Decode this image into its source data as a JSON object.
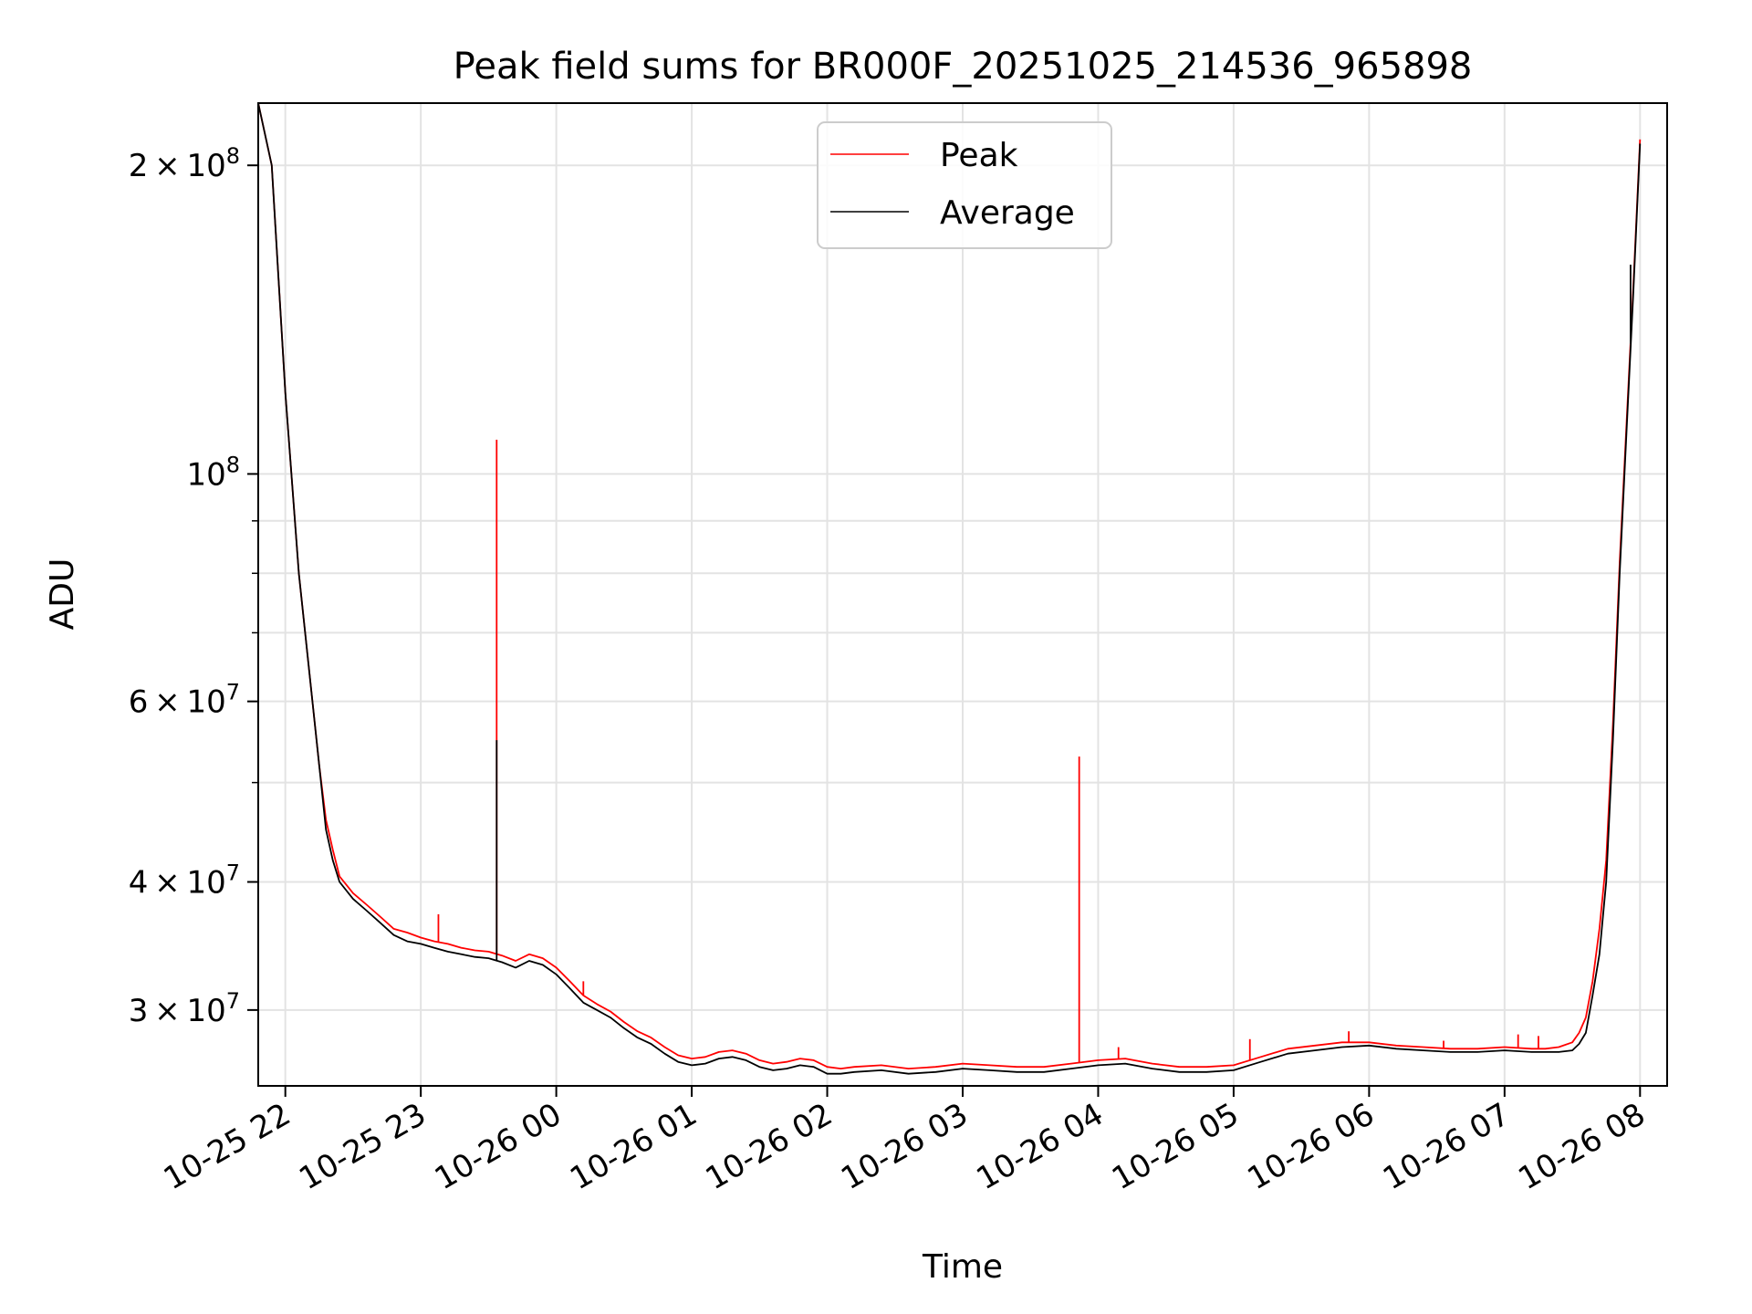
{
  "chart_data": {
    "type": "line",
    "title": "Peak field sums for BR000F_20251025_214536_965898",
    "xlabel": "Time",
    "ylabel": "ADU",
    "yscale": "log",
    "ylim": [
      25300000,
      230000000
    ],
    "xlim_hours": [
      -0.2,
      10.2
    ],
    "grid": true,
    "legend_position": "upper-center",
    "x_ticks": [
      {
        "hours": 0,
        "label": "10-25 22"
      },
      {
        "hours": 1,
        "label": "10-25 23"
      },
      {
        "hours": 2,
        "label": "10-26 00"
      },
      {
        "hours": 3,
        "label": "10-26 01"
      },
      {
        "hours": 4,
        "label": "10-26 02"
      },
      {
        "hours": 5,
        "label": "10-26 03"
      },
      {
        "hours": 6,
        "label": "10-26 04"
      },
      {
        "hours": 7,
        "label": "10-26 05"
      },
      {
        "hours": 8,
        "label": "10-26 06"
      },
      {
        "hours": 9,
        "label": "10-26 07"
      },
      {
        "hours": 10,
        "label": "10-26 08"
      }
    ],
    "y_ticks": [
      {
        "value": 30000000,
        "mantissa": "3",
        "exponent": "7"
      },
      {
        "value": 40000000,
        "mantissa": "4",
        "exponent": "7"
      },
      {
        "value": 60000000,
        "mantissa": "6",
        "exponent": "7"
      },
      {
        "value": 100000000,
        "mantissa": "",
        "exponent": "8"
      },
      {
        "value": 200000000,
        "mantissa": "2",
        "exponent": "8"
      }
    ],
    "y_minor_ticks": [
      50000000,
      70000000,
      80000000,
      90000000
    ],
    "x_hours": [
      -0.2,
      -0.1,
      0.0,
      0.1,
      0.2,
      0.25,
      0.3,
      0.35,
      0.4,
      0.5,
      0.6,
      0.7,
      0.8,
      0.9,
      1.0,
      1.1,
      1.2,
      1.3,
      1.4,
      1.5,
      1.6,
      1.7,
      1.8,
      1.9,
      2.0,
      2.1,
      2.2,
      2.3,
      2.4,
      2.5,
      2.6,
      2.7,
      2.8,
      2.9,
      3.0,
      3.1,
      3.2,
      3.3,
      3.4,
      3.5,
      3.6,
      3.7,
      3.8,
      3.9,
      4.0,
      4.1,
      4.2,
      4.4,
      4.6,
      4.8,
      5.0,
      5.2,
      5.4,
      5.6,
      5.8,
      6.0,
      6.2,
      6.4,
      6.6,
      6.8,
      7.0,
      7.2,
      7.4,
      7.6,
      7.8,
      8.0,
      8.2,
      8.4,
      8.6,
      8.8,
      9.0,
      9.2,
      9.3,
      9.4,
      9.5,
      9.55,
      9.6,
      9.65,
      9.7,
      9.75,
      9.8,
      9.85,
      9.9,
      9.95,
      10.0
    ],
    "series": [
      {
        "name": "Average",
        "color": "#000000",
        "values": [
          230000000,
          200000000,
          120000000,
          80000000,
          60000000,
          52000000,
          45000000,
          42000000,
          40000000,
          38500000,
          37500000,
          36500000,
          35500000,
          35000000,
          34800000,
          34500000,
          34200000,
          34000000,
          33800000,
          33700000,
          33400000,
          33000000,
          33500000,
          33200000,
          32500000,
          31500000,
          30500000,
          30000000,
          29500000,
          28800000,
          28200000,
          27800000,
          27200000,
          26700000,
          26500000,
          26600000,
          26900000,
          27000000,
          26800000,
          26400000,
          26200000,
          26300000,
          26500000,
          26400000,
          26000000,
          26000000,
          26100000,
          26200000,
          26000000,
          26100000,
          26300000,
          26200000,
          26100000,
          26100000,
          26300000,
          26500000,
          26600000,
          26300000,
          26100000,
          26100000,
          26200000,
          26700000,
          27200000,
          27400000,
          27600000,
          27700000,
          27500000,
          27400000,
          27300000,
          27300000,
          27400000,
          27300000,
          27300000,
          27300000,
          27400000,
          27800000,
          28500000,
          31000000,
          34000000,
          40000000,
          55000000,
          80000000,
          110000000,
          150000000,
          210000000
        ]
      },
      {
        "name": "Peak",
        "color": "#ff0000",
        "values": [
          230000000,
          200000000,
          120000000,
          80000000,
          60000000,
          52000000,
          46000000,
          43000000,
          40500000,
          39000000,
          38000000,
          37000000,
          36000000,
          35700000,
          35300000,
          35000000,
          34800000,
          34500000,
          34300000,
          34200000,
          33900000,
          33500000,
          34000000,
          33700000,
          33000000,
          32000000,
          31000000,
          30400000,
          29900000,
          29200000,
          28600000,
          28200000,
          27600000,
          27100000,
          26900000,
          27000000,
          27300000,
          27400000,
          27200000,
          26800000,
          26600000,
          26700000,
          26900000,
          26800000,
          26400000,
          26300000,
          26400000,
          26500000,
          26300000,
          26400000,
          26600000,
          26500000,
          26400000,
          26400000,
          26600000,
          26800000,
          26900000,
          26600000,
          26400000,
          26400000,
          26500000,
          27000000,
          27500000,
          27700000,
          27900000,
          27900000,
          27700000,
          27600000,
          27500000,
          27500000,
          27600000,
          27500000,
          27500000,
          27600000,
          27900000,
          28500000,
          29500000,
          32000000,
          36000000,
          42000000,
          57000000,
          82000000,
          112000000,
          152000000,
          212000000
        ]
      }
    ],
    "spikes": [
      {
        "series": "Peak",
        "hours": 1.13,
        "value": 37200000
      },
      {
        "series": "Peak",
        "hours": 1.56,
        "value": 108000000
      },
      {
        "series": "Average",
        "hours": 1.56,
        "value": 55000000
      },
      {
        "series": "Peak",
        "hours": 2.2,
        "value": 32000000
      },
      {
        "series": "Peak",
        "hours": 5.86,
        "value": 53000000
      },
      {
        "series": "Peak",
        "hours": 6.15,
        "value": 27600000
      },
      {
        "series": "Peak",
        "hours": 7.12,
        "value": 28100000
      },
      {
        "series": "Peak",
        "hours": 7.85,
        "value": 28600000
      },
      {
        "series": "Peak",
        "hours": 8.55,
        "value": 28000000
      },
      {
        "series": "Peak",
        "hours": 9.1,
        "value": 28400000
      },
      {
        "series": "Peak",
        "hours": 9.25,
        "value": 28300000
      },
      {
        "series": "Average",
        "hours": 9.93,
        "value": 160000000
      }
    ]
  }
}
